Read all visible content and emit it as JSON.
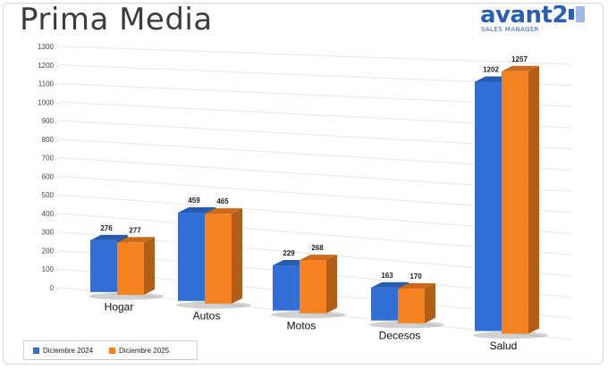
{
  "title": "Prima Media",
  "logo": {
    "name": "avant2",
    "subtitle": "SALES MANAGER",
    "color": "#2b5fb3"
  },
  "colors": {
    "series_2024": "#2f6fd6",
    "series_2025": "#f58221"
  },
  "chart_data": {
    "type": "bar",
    "title": "Prima Media",
    "categories": [
      "Hogar",
      "Autos",
      "Motos",
      "Decesos",
      "Salud"
    ],
    "series": [
      {
        "name": "Diciembre 2024",
        "values": [
          276,
          459,
          229,
          163,
          1202
        ]
      },
      {
        "name": "Diciembre  2025",
        "values": [
          277,
          465,
          268,
          170,
          1257
        ]
      }
    ],
    "y_ticks": [
      "0",
      "100",
      "200",
      "300",
      "400",
      "500",
      "600",
      "700",
      "800",
      "900",
      "1000",
      "1100",
      "1200",
      "1300"
    ],
    "ylim": [
      0,
      1300
    ],
    "grid": true,
    "legend_position": "bottom-left",
    "style": "3d-perspective"
  }
}
